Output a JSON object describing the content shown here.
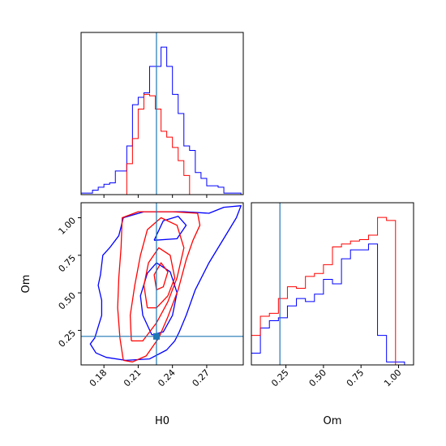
{
  "chart_data": [
    {
      "type": "histogram",
      "panel": "H0 marginal",
      "xlim": [
        0.16,
        0.302
      ],
      "x_ticks": [
        0.18,
        0.21,
        0.24,
        0.27
      ],
      "tick_labels_visible": false,
      "truth_line_x": 0.226,
      "truth_color": "#1f77b4",
      "series": [
        {
          "color": "#0000ff",
          "bins": [
            0.16,
            0.165,
            0.17,
            0.175,
            0.18,
            0.185,
            0.19,
            0.195,
            0.2,
            0.205,
            0.21,
            0.215,
            0.22,
            0.225,
            0.23,
            0.235,
            0.24,
            0.245,
            0.25,
            0.255,
            0.26,
            0.265,
            0.27,
            0.275,
            0.28,
            0.285,
            0.29,
            0.295,
            0.3
          ],
          "values": [
            0.01,
            0.01,
            0.03,
            0.05,
            0.07,
            0.08,
            0.16,
            0.16,
            0.33,
            0.61,
            0.66,
            0.69,
            0.87,
            0.87,
            1.0,
            0.87,
            0.68,
            0.55,
            0.33,
            0.3,
            0.15,
            0.11,
            0.06,
            0.06,
            0.05,
            0.01,
            0.01,
            0.01
          ]
        },
        {
          "color": "#ff0000",
          "bins": [
            0.2,
            0.205,
            0.21,
            0.215,
            0.22,
            0.225,
            0.23,
            0.235,
            0.24,
            0.245,
            0.25,
            0.255
          ],
          "values": [
            0.21,
            0.38,
            0.58,
            0.68,
            0.67,
            0.58,
            0.43,
            0.39,
            0.32,
            0.23,
            0.13
          ]
        }
      ]
    },
    {
      "type": "contour",
      "panel": "H0 vs Om",
      "xlabel": "H0",
      "ylabel": "Om",
      "xlim": [
        0.16,
        0.302
      ],
      "ylim": [
        0.02,
        1.1
      ],
      "x_ticks": [
        0.18,
        0.21,
        0.24,
        0.27
      ],
      "x_tick_labels": [
        "0.18",
        "0.21",
        "0.24",
        "0.27"
      ],
      "y_ticks": [
        0.25,
        0.5,
        0.75,
        1.0
      ],
      "y_tick_labels": [
        "0.25",
        "0.50",
        "0.75",
        "1.00"
      ],
      "truth": {
        "x": 0.226,
        "y": 0.21
      },
      "truth_color": "#1f77b4",
      "series": [
        {
          "color": "#0000ff",
          "contours": [
            [
              [
                0.199,
                0.05
              ],
              [
                0.182,
                0.07
              ],
              [
                0.173,
                0.1
              ],
              [
                0.168,
                0.16
              ],
              [
                0.172,
                0.2
              ],
              [
                0.178,
                0.35
              ],
              [
                0.178,
                0.45
              ],
              [
                0.175,
                0.55
              ],
              [
                0.177,
                0.62
              ],
              [
                0.179,
                0.75
              ],
              [
                0.185,
                0.8
              ],
              [
                0.193,
                0.88
              ],
              [
                0.197,
                1.0
              ],
              [
                0.215,
                1.04
              ],
              [
                0.25,
                1.04
              ],
              [
                0.272,
                1.03
              ],
              [
                0.285,
                1.07
              ],
              [
                0.3,
                1.08
              ],
              [
                0.296,
                1.0
              ],
              [
                0.288,
                0.9
              ],
              [
                0.272,
                0.7
              ],
              [
                0.26,
                0.52
              ],
              [
                0.252,
                0.35
              ],
              [
                0.246,
                0.24
              ],
              [
                0.242,
                0.18
              ],
              [
                0.235,
                0.12
              ],
              [
                0.22,
                0.06
              ],
              [
                0.199,
                0.05
              ]
            ],
            [
              [
                0.222,
                0.22
              ],
              [
                0.214,
                0.35
              ],
              [
                0.212,
                0.48
              ],
              [
                0.218,
                0.63
              ],
              [
                0.226,
                0.7
              ],
              [
                0.238,
                0.64
              ],
              [
                0.244,
                0.5
              ],
              [
                0.24,
                0.35
              ],
              [
                0.232,
                0.24
              ],
              [
                0.222,
                0.22
              ]
            ],
            [
              [
                0.224,
                0.85
              ],
              [
                0.232,
                0.98
              ],
              [
                0.245,
                1.01
              ],
              [
                0.252,
                0.95
              ],
              [
                0.244,
                0.86
              ],
              [
                0.224,
                0.85
              ]
            ]
          ]
        },
        {
          "color": "#ff0000",
          "contours": [
            [
              [
                0.197,
                0.05
              ],
              [
                0.194,
                0.2
              ],
              [
                0.192,
                0.4
              ],
              [
                0.193,
                0.6
              ],
              [
                0.195,
                0.8
              ],
              [
                0.196,
                1.0
              ],
              [
                0.21,
                1.04
              ],
              [
                0.24,
                1.04
              ],
              [
                0.262,
                1.03
              ],
              [
                0.264,
                0.95
              ],
              [
                0.258,
                0.85
              ],
              [
                0.252,
                0.72
              ],
              [
                0.245,
                0.52
              ],
              [
                0.236,
                0.34
              ],
              [
                0.228,
                0.2
              ],
              [
                0.217,
                0.08
              ],
              [
                0.205,
                0.04
              ],
              [
                0.197,
                0.05
              ]
            ],
            [
              [
                0.204,
                0.18
              ],
              [
                0.203,
                0.35
              ],
              [
                0.207,
                0.55
              ],
              [
                0.212,
                0.75
              ],
              [
                0.218,
                0.92
              ],
              [
                0.23,
                1.0
              ],
              [
                0.244,
                0.95
              ],
              [
                0.25,
                0.8
              ],
              [
                0.244,
                0.6
              ],
              [
                0.236,
                0.44
              ],
              [
                0.226,
                0.3
              ],
              [
                0.214,
                0.18
              ],
              [
                0.204,
                0.18
              ]
            ],
            [
              [
                0.218,
                0.4
              ],
              [
                0.215,
                0.55
              ],
              [
                0.219,
                0.7
              ],
              [
                0.228,
                0.8
              ],
              [
                0.238,
                0.75
              ],
              [
                0.242,
                0.6
              ],
              [
                0.236,
                0.48
              ],
              [
                0.226,
                0.4
              ],
              [
                0.218,
                0.4
              ]
            ],
            [
              [
                0.226,
                0.52
              ],
              [
                0.224,
                0.62
              ],
              [
                0.23,
                0.7
              ],
              [
                0.236,
                0.64
              ],
              [
                0.232,
                0.54
              ],
              [
                0.226,
                0.52
              ]
            ]
          ]
        }
      ]
    },
    {
      "type": "histogram",
      "panel": "Om marginal",
      "xlabel": "Om",
      "xlim": [
        0.02,
        1.1
      ],
      "x_ticks": [
        0.25,
        0.5,
        0.75,
        1.0
      ],
      "x_tick_labels": [
        "0.25",
        "0.50",
        "0.75",
        "1.00"
      ],
      "truth_line_x": 0.21,
      "truth_color": "#1f77b4",
      "series": [
        {
          "color": "#0000ff",
          "bins": [
            0.02,
            0.08,
            0.14,
            0.2,
            0.26,
            0.32,
            0.38,
            0.44,
            0.5,
            0.56,
            0.62,
            0.68,
            0.74,
            0.8,
            0.86,
            0.92,
            0.98,
            1.04,
            1.1
          ],
          "values": [
            0.08,
            0.25,
            0.3,
            0.32,
            0.4,
            0.45,
            0.43,
            0.48,
            0.58,
            0.55,
            0.72,
            0.78,
            0.78,
            0.82,
            0.2,
            0.02,
            0.02,
            0.0
          ]
        },
        {
          "color": "#ff0000",
          "bins": [
            0.02,
            0.08,
            0.14,
            0.2,
            0.26,
            0.32,
            0.38,
            0.44,
            0.5,
            0.56,
            0.62,
            0.68,
            0.74,
            0.8,
            0.86,
            0.92,
            0.98,
            1.04
          ],
          "values": [
            0.2,
            0.33,
            0.35,
            0.45,
            0.53,
            0.52,
            0.6,
            0.62,
            0.68,
            0.8,
            0.82,
            0.84,
            0.85,
            0.88,
            1.0,
            0.98,
            0.0
          ]
        }
      ]
    }
  ]
}
